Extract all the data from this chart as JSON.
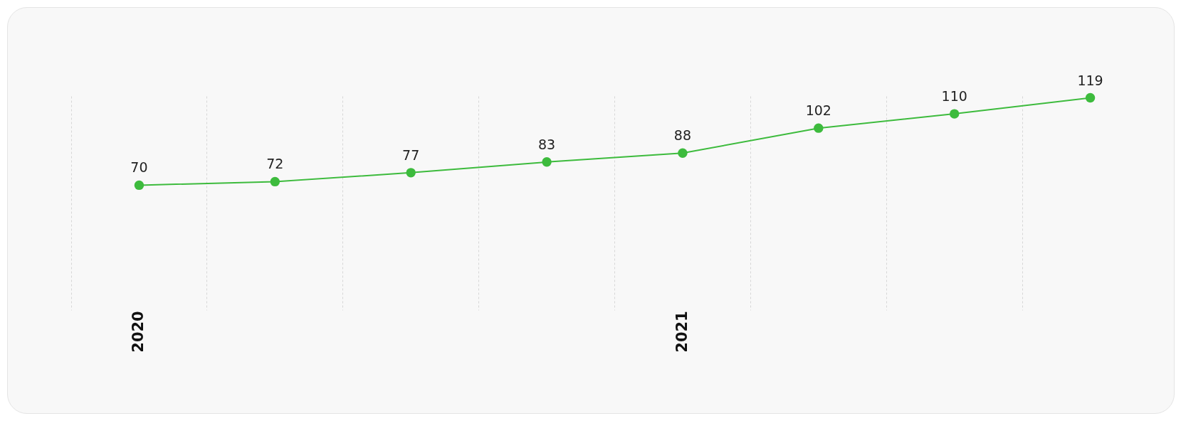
{
  "chart_data": {
    "type": "line",
    "categories": [
      "2020",
      null,
      null,
      null,
      "2021",
      null,
      null,
      null
    ],
    "series": [
      {
        "color": "#3dbb3d",
        "values": [
          70,
          72,
          77,
          83,
          88,
          102,
          110,
          119
        ]
      }
    ],
    "ylim": [
      0,
      120
    ],
    "tick_labels": "x",
    "grid": "x",
    "marker": "circle",
    "line_style": "solid",
    "data_labels": true
  }
}
